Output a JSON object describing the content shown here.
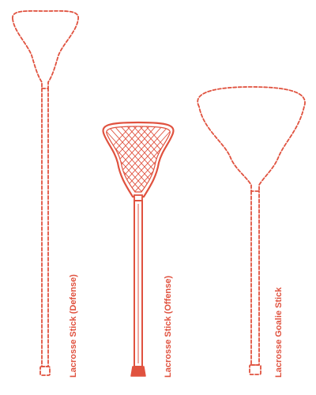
{
  "colors": {
    "stroke": "#e0523f",
    "background": "#ffffff"
  },
  "sticks": [
    {
      "label": "Lacrosse Stick (Defense)",
      "style": "dashed-outline"
    },
    {
      "label": "Lacrosse Stick (Offense)",
      "style": "solid-with-mesh"
    },
    {
      "label": "Lacrosse Goalie Stick",
      "style": "dashed-outline"
    }
  ]
}
